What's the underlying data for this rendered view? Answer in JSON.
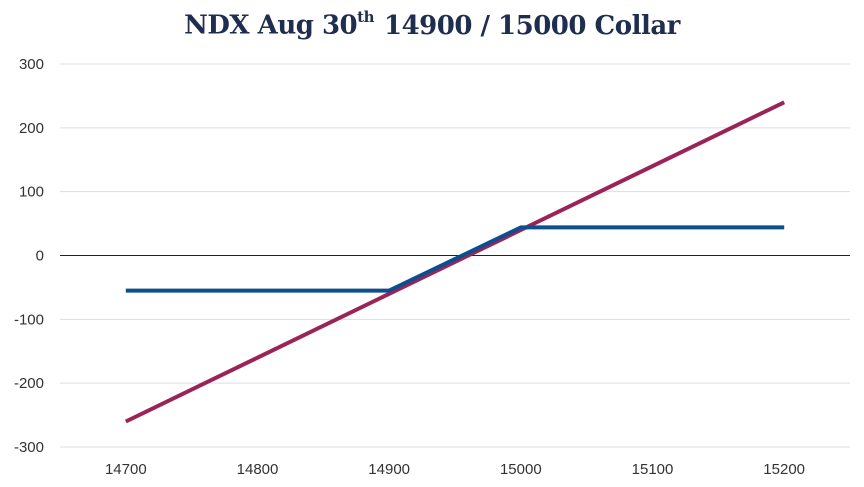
{
  "chart_data": {
    "type": "line",
    "title": {
      "main": "NDX Aug 30",
      "superscript": "th",
      "rest": "14900 / 15000 Collar"
    },
    "xlabel": "",
    "ylabel": "",
    "x_ticks": [
      14700,
      14800,
      14900,
      15000,
      15100,
      15200
    ],
    "y_ticks": [
      300,
      200,
      100,
      0,
      -100,
      -200,
      -300
    ],
    "xlim": [
      14650,
      15250
    ],
    "ylim": [
      -300,
      300
    ],
    "grid": true,
    "legend": "none",
    "series": [
      {
        "color": "#9b2457",
        "x": [
          14700,
          15200
        ],
        "y": [
          -260,
          240
        ]
      },
      {
        "color": "#0b4f8f",
        "x": [
          14700,
          14900,
          15000,
          15200
        ],
        "y": [
          -55,
          -55,
          44,
          44
        ]
      }
    ]
  }
}
